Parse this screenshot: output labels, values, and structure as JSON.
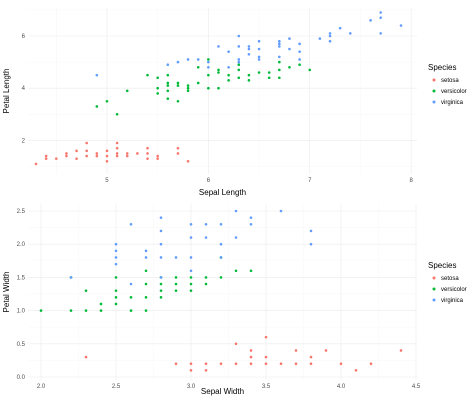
{
  "legend_title": "Species",
  "species": [
    "setosa",
    "versicolor",
    "virginica"
  ],
  "colors": {
    "setosa": "#F8766D",
    "versicolor": "#00BA38",
    "virginica": "#619CFF"
  },
  "chart_data": [
    {
      "type": "scatter",
      "xlabel": "Sepal Length",
      "ylabel": "Petal Length",
      "xlim": [
        4.3,
        7.9
      ],
      "ylim": [
        1.0,
        6.9
      ],
      "xticks": [
        5,
        6,
        7,
        8
      ],
      "yticks": [
        2,
        4,
        6
      ],
      "grid": true,
      "legend": "right",
      "series": [
        {
          "name": "setosa",
          "points": [
            [
              4.3,
              1.1
            ],
            [
              4.4,
              1.3
            ],
            [
              4.4,
              1.4
            ],
            [
              4.5,
              1.3
            ],
            [
              4.6,
              1.4
            ],
            [
              4.6,
              1.5
            ],
            [
              4.7,
              1.3
            ],
            [
              4.7,
              1.6
            ],
            [
              4.8,
              1.4
            ],
            [
              4.8,
              1.6
            ],
            [
              4.8,
              1.9
            ],
            [
              4.9,
              1.4
            ],
            [
              4.9,
              1.5
            ],
            [
              5.0,
              1.2
            ],
            [
              5.0,
              1.4
            ],
            [
              5.0,
              1.6
            ],
            [
              5.1,
              1.4
            ],
            [
              5.1,
              1.5
            ],
            [
              5.1,
              1.7
            ],
            [
              5.1,
              1.9
            ],
            [
              5.2,
              1.4
            ],
            [
              5.2,
              1.5
            ],
            [
              5.3,
              1.5
            ],
            [
              5.4,
              1.3
            ],
            [
              5.4,
              1.5
            ],
            [
              5.4,
              1.7
            ],
            [
              5.5,
              1.3
            ],
            [
              5.5,
              1.4
            ],
            [
              5.7,
              1.5
            ],
            [
              5.7,
              1.7
            ],
            [
              5.8,
              1.2
            ]
          ]
        },
        {
          "name": "versicolor",
          "points": [
            [
              4.9,
              3.3
            ],
            [
              5.0,
              3.5
            ],
            [
              5.1,
              3.0
            ],
            [
              5.2,
              3.9
            ],
            [
              5.4,
              4.5
            ],
            [
              5.5,
              3.8
            ],
            [
              5.5,
              4.0
            ],
            [
              5.5,
              4.4
            ],
            [
              5.6,
              3.6
            ],
            [
              5.6,
              3.9
            ],
            [
              5.6,
              4.1
            ],
            [
              5.6,
              4.2
            ],
            [
              5.6,
              4.5
            ],
            [
              5.7,
              3.5
            ],
            [
              5.7,
              4.1
            ],
            [
              5.7,
              4.2
            ],
            [
              5.8,
              3.9
            ],
            [
              5.8,
              4.0
            ],
            [
              5.8,
              4.1
            ],
            [
              5.9,
              4.2
            ],
            [
              5.9,
              4.8
            ],
            [
              6.0,
              4.0
            ],
            [
              6.0,
              4.5
            ],
            [
              6.0,
              5.1
            ],
            [
              6.1,
              4.0
            ],
            [
              6.1,
              4.6
            ],
            [
              6.1,
              4.7
            ],
            [
              6.2,
              4.3
            ],
            [
              6.2,
              4.5
            ],
            [
              6.3,
              4.4
            ],
            [
              6.3,
              4.7
            ],
            [
              6.3,
              4.9
            ],
            [
              6.4,
              4.3
            ],
            [
              6.4,
              4.5
            ],
            [
              6.5,
              4.6
            ],
            [
              6.6,
              4.4
            ],
            [
              6.6,
              4.6
            ],
            [
              6.7,
              4.4
            ],
            [
              6.7,
              4.7
            ],
            [
              6.7,
              5.0
            ],
            [
              6.8,
              4.8
            ],
            [
              6.9,
              4.9
            ],
            [
              7.0,
              4.7
            ]
          ]
        },
        {
          "name": "virginica",
          "points": [
            [
              4.9,
              4.5
            ],
            [
              5.6,
              4.9
            ],
            [
              5.7,
              5.0
            ],
            [
              5.8,
              5.1
            ],
            [
              5.9,
              5.1
            ],
            [
              6.0,
              4.8
            ],
            [
              6.0,
              5.0
            ],
            [
              6.1,
              5.6
            ],
            [
              6.2,
              4.8
            ],
            [
              6.2,
              5.4
            ],
            [
              6.3,
              5.0
            ],
            [
              6.3,
              5.1
            ],
            [
              6.3,
              5.6
            ],
            [
              6.3,
              6.0
            ],
            [
              6.4,
              5.3
            ],
            [
              6.4,
              5.5
            ],
            [
              6.4,
              5.6
            ],
            [
              6.5,
              5.1
            ],
            [
              6.5,
              5.2
            ],
            [
              6.5,
              5.5
            ],
            [
              6.5,
              5.8
            ],
            [
              6.7,
              5.2
            ],
            [
              6.7,
              5.6
            ],
            [
              6.7,
              5.7
            ],
            [
              6.7,
              5.8
            ],
            [
              6.8,
              5.5
            ],
            [
              6.8,
              5.9
            ],
            [
              6.9,
              5.1
            ],
            [
              6.9,
              5.4
            ],
            [
              6.9,
              5.7
            ],
            [
              7.1,
              5.9
            ],
            [
              7.2,
              5.8
            ],
            [
              7.2,
              6.0
            ],
            [
              7.2,
              6.1
            ],
            [
              7.3,
              6.3
            ],
            [
              7.4,
              6.1
            ],
            [
              7.6,
              6.6
            ],
            [
              7.7,
              6.1
            ],
            [
              7.7,
              6.7
            ],
            [
              7.7,
              6.9
            ],
            [
              7.9,
              6.4
            ]
          ]
        }
      ]
    },
    {
      "type": "scatter",
      "xlabel": "Sepal Width",
      "ylabel": "Petal Width",
      "xlim": [
        2.0,
        4.4
      ],
      "ylim": [
        0.1,
        2.5
      ],
      "xticks": [
        2.0,
        2.5,
        3.0,
        3.5,
        4.0,
        4.5
      ],
      "yticks": [
        0.0,
        0.5,
        1.0,
        1.5,
        2.0,
        2.5
      ],
      "grid": true,
      "legend": "right",
      "series": [
        {
          "name": "setosa",
          "points": [
            [
              2.3,
              0.3
            ],
            [
              2.9,
              0.2
            ],
            [
              3.0,
              0.1
            ],
            [
              3.0,
              0.2
            ],
            [
              3.1,
              0.1
            ],
            [
              3.1,
              0.2
            ],
            [
              3.2,
              0.2
            ],
            [
              3.3,
              0.2
            ],
            [
              3.3,
              0.5
            ],
            [
              3.4,
              0.2
            ],
            [
              3.4,
              0.3
            ],
            [
              3.4,
              0.4
            ],
            [
              3.5,
              0.2
            ],
            [
              3.5,
              0.3
            ],
            [
              3.5,
              0.6
            ],
            [
              3.6,
              0.2
            ],
            [
              3.7,
              0.2
            ],
            [
              3.7,
              0.4
            ],
            [
              3.8,
              0.2
            ],
            [
              3.8,
              0.3
            ],
            [
              3.9,
              0.4
            ],
            [
              4.0,
              0.2
            ],
            [
              4.1,
              0.1
            ],
            [
              4.2,
              0.2
            ],
            [
              4.4,
              0.4
            ]
          ]
        },
        {
          "name": "versicolor",
          "points": [
            [
              2.0,
              1.0
            ],
            [
              2.2,
              1.0
            ],
            [
              2.2,
              1.5
            ],
            [
              2.3,
              1.0
            ],
            [
              2.3,
              1.3
            ],
            [
              2.4,
              1.0
            ],
            [
              2.4,
              1.1
            ],
            [
              2.5,
              1.1
            ],
            [
              2.5,
              1.2
            ],
            [
              2.5,
              1.3
            ],
            [
              2.5,
              1.5
            ],
            [
              2.6,
              1.0
            ],
            [
              2.6,
              1.2
            ],
            [
              2.7,
              1.0
            ],
            [
              2.7,
              1.2
            ],
            [
              2.7,
              1.4
            ],
            [
              2.7,
              1.6
            ],
            [
              2.8,
              1.2
            ],
            [
              2.8,
              1.3
            ],
            [
              2.8,
              1.4
            ],
            [
              2.8,
              1.5
            ],
            [
              2.9,
              1.3
            ],
            [
              2.9,
              1.4
            ],
            [
              2.9,
              1.5
            ],
            [
              3.0,
              1.3
            ],
            [
              3.0,
              1.4
            ],
            [
              3.0,
              1.5
            ],
            [
              3.1,
              1.4
            ],
            [
              3.1,
              1.5
            ],
            [
              3.2,
              1.5
            ],
            [
              3.2,
              1.8
            ],
            [
              3.3,
              1.6
            ],
            [
              3.4,
              1.6
            ]
          ]
        },
        {
          "name": "virginica",
          "points": [
            [
              2.2,
              1.5
            ],
            [
              2.5,
              1.7
            ],
            [
              2.5,
              1.8
            ],
            [
              2.5,
              1.9
            ],
            [
              2.5,
              2.0
            ],
            [
              2.6,
              1.4
            ],
            [
              2.6,
              2.3
            ],
            [
              2.7,
              1.8
            ],
            [
              2.7,
              1.9
            ],
            [
              2.8,
              1.5
            ],
            [
              2.8,
              1.8
            ],
            [
              2.8,
              2.0
            ],
            [
              2.8,
              2.2
            ],
            [
              2.8,
              2.4
            ],
            [
              2.9,
              1.8
            ],
            [
              3.0,
              1.6
            ],
            [
              3.0,
              1.8
            ],
            [
              3.0,
              2.1
            ],
            [
              3.0,
              2.3
            ],
            [
              3.1,
              2.1
            ],
            [
              3.1,
              2.3
            ],
            [
              3.2,
              1.8
            ],
            [
              3.2,
              2.0
            ],
            [
              3.2,
              2.3
            ],
            [
              3.3,
              2.1
            ],
            [
              3.3,
              2.5
            ],
            [
              3.4,
              2.3
            ],
            [
              3.4,
              2.4
            ],
            [
              3.6,
              2.5
            ],
            [
              3.8,
              2.0
            ],
            [
              3.8,
              2.2
            ]
          ]
        }
      ]
    }
  ]
}
